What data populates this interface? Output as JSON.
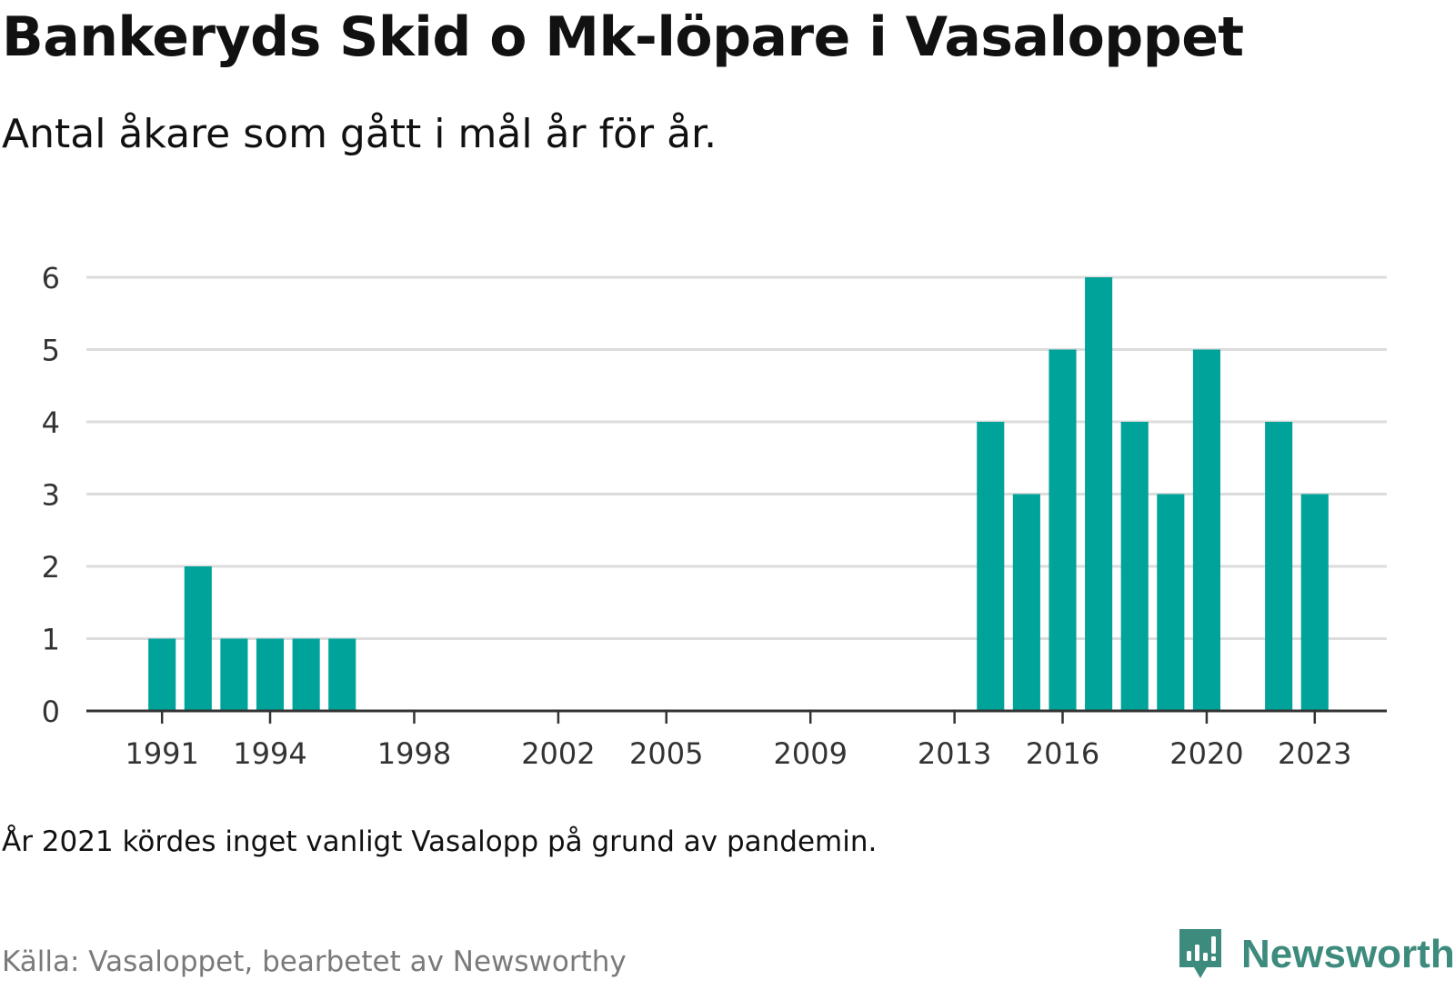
{
  "title": "Bankeryds Skid o Mk-löpare i Vasaloppet",
  "subtitle": "Antal åkare som gått i mål år för år.",
  "note": "År 2021 kördes inget vanligt Vasalopp på grund av pandemin.",
  "source": "Källa: Vasaloppet, bearbetet av Newsworthy",
  "brand": {
    "name": "Newsworthy",
    "icon": "newsworthy-logo-icon",
    "color": "#3d8b7d"
  },
  "chart_data": {
    "type": "bar",
    "bar_color": "#00a39a",
    "grid": true,
    "x": [
      1991,
      1992,
      1993,
      1994,
      1995,
      1996,
      2014,
      2015,
      2016,
      2017,
      2018,
      2019,
      2020,
      2022,
      2023
    ],
    "values": [
      1,
      2,
      1,
      1,
      1,
      1,
      4,
      3,
      5,
      6,
      4,
      3,
      5,
      4,
      3
    ],
    "xlim": [
      1988.9,
      2025
    ],
    "ylim": [
      0,
      6
    ],
    "xticks": [
      "1991",
      "1994",
      "1998",
      "2002",
      "2005",
      "2009",
      "2013",
      "2016",
      "2020",
      "2023"
    ],
    "yticks": [
      "0",
      "1",
      "2",
      "3",
      "4",
      "5",
      "6"
    ]
  }
}
